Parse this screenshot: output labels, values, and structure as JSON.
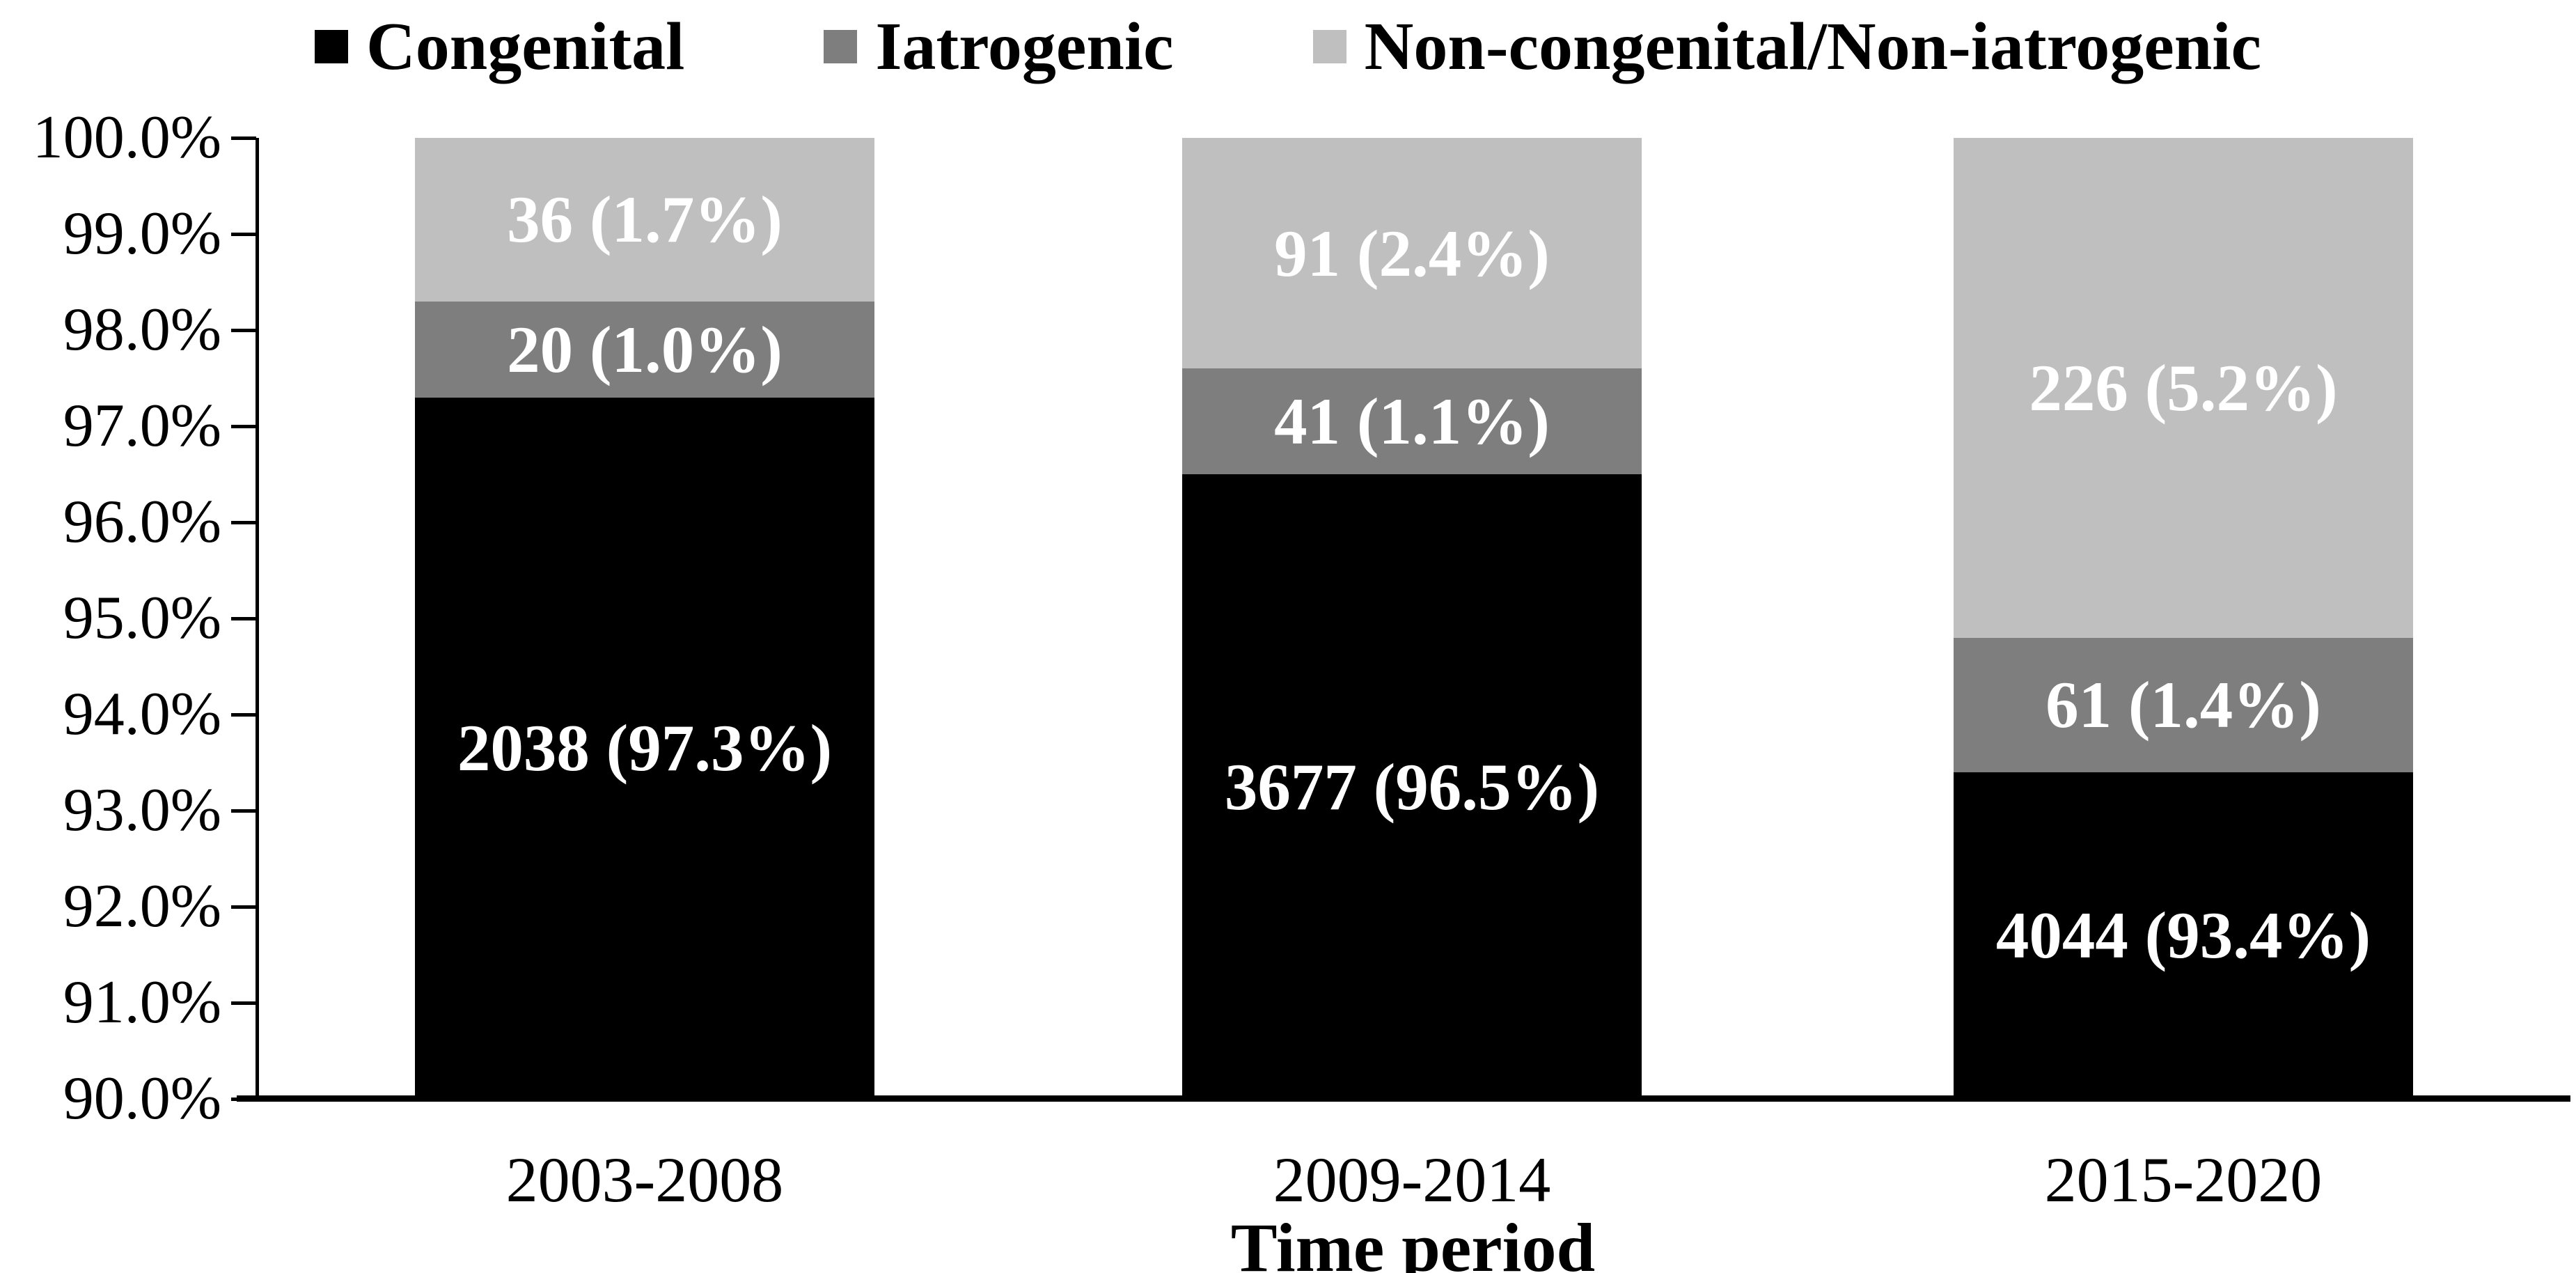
{
  "chart_data": {
    "type": "bar",
    "stacked": true,
    "title": "",
    "xlabel": "Time period",
    "ylabel": "",
    "ylim": [
      90,
      100
    ],
    "ytick_step": 1.0,
    "ytick_labels": [
      "100.0%",
      "99.0%",
      "98.0%",
      "97.0%",
      "96.0%",
      "95.0%",
      "94.0%",
      "93.0%",
      "92.0%",
      "91.0%",
      "90.0%"
    ],
    "categories": [
      "2003-2008",
      "2009-2014",
      "2015-2020"
    ],
    "legend_position": "top",
    "grid": "off",
    "series": [
      {
        "name": "Congenital",
        "color": "#000000",
        "counts": [
          2038,
          3677,
          4044
        ],
        "percents": [
          97.3,
          96.5,
          93.4
        ],
        "labels": [
          "2038 (97.3%)",
          "3677 (96.5%)",
          "4044 (93.4%)"
        ]
      },
      {
        "name": "Iatrogenic",
        "color": "#7E7E7E",
        "counts": [
          20,
          41,
          61
        ],
        "percents": [
          1.0,
          1.1,
          1.4
        ],
        "labels": [
          "20 (1.0%)",
          "41 (1.1%)",
          "61 (1.4%)"
        ]
      },
      {
        "name": "Non-congenital/Non-iatrogenic",
        "color": "#BFBFBF",
        "counts": [
          36,
          91,
          226
        ],
        "percents": [
          1.7,
          2.4,
          5.2
        ],
        "labels": [
          "36 (1.7%)",
          "91 (2.4%)",
          "226 (5.2%)"
        ]
      }
    ],
    "bar_label_color": "#FFFFFF",
    "axis_color": "#000000"
  }
}
